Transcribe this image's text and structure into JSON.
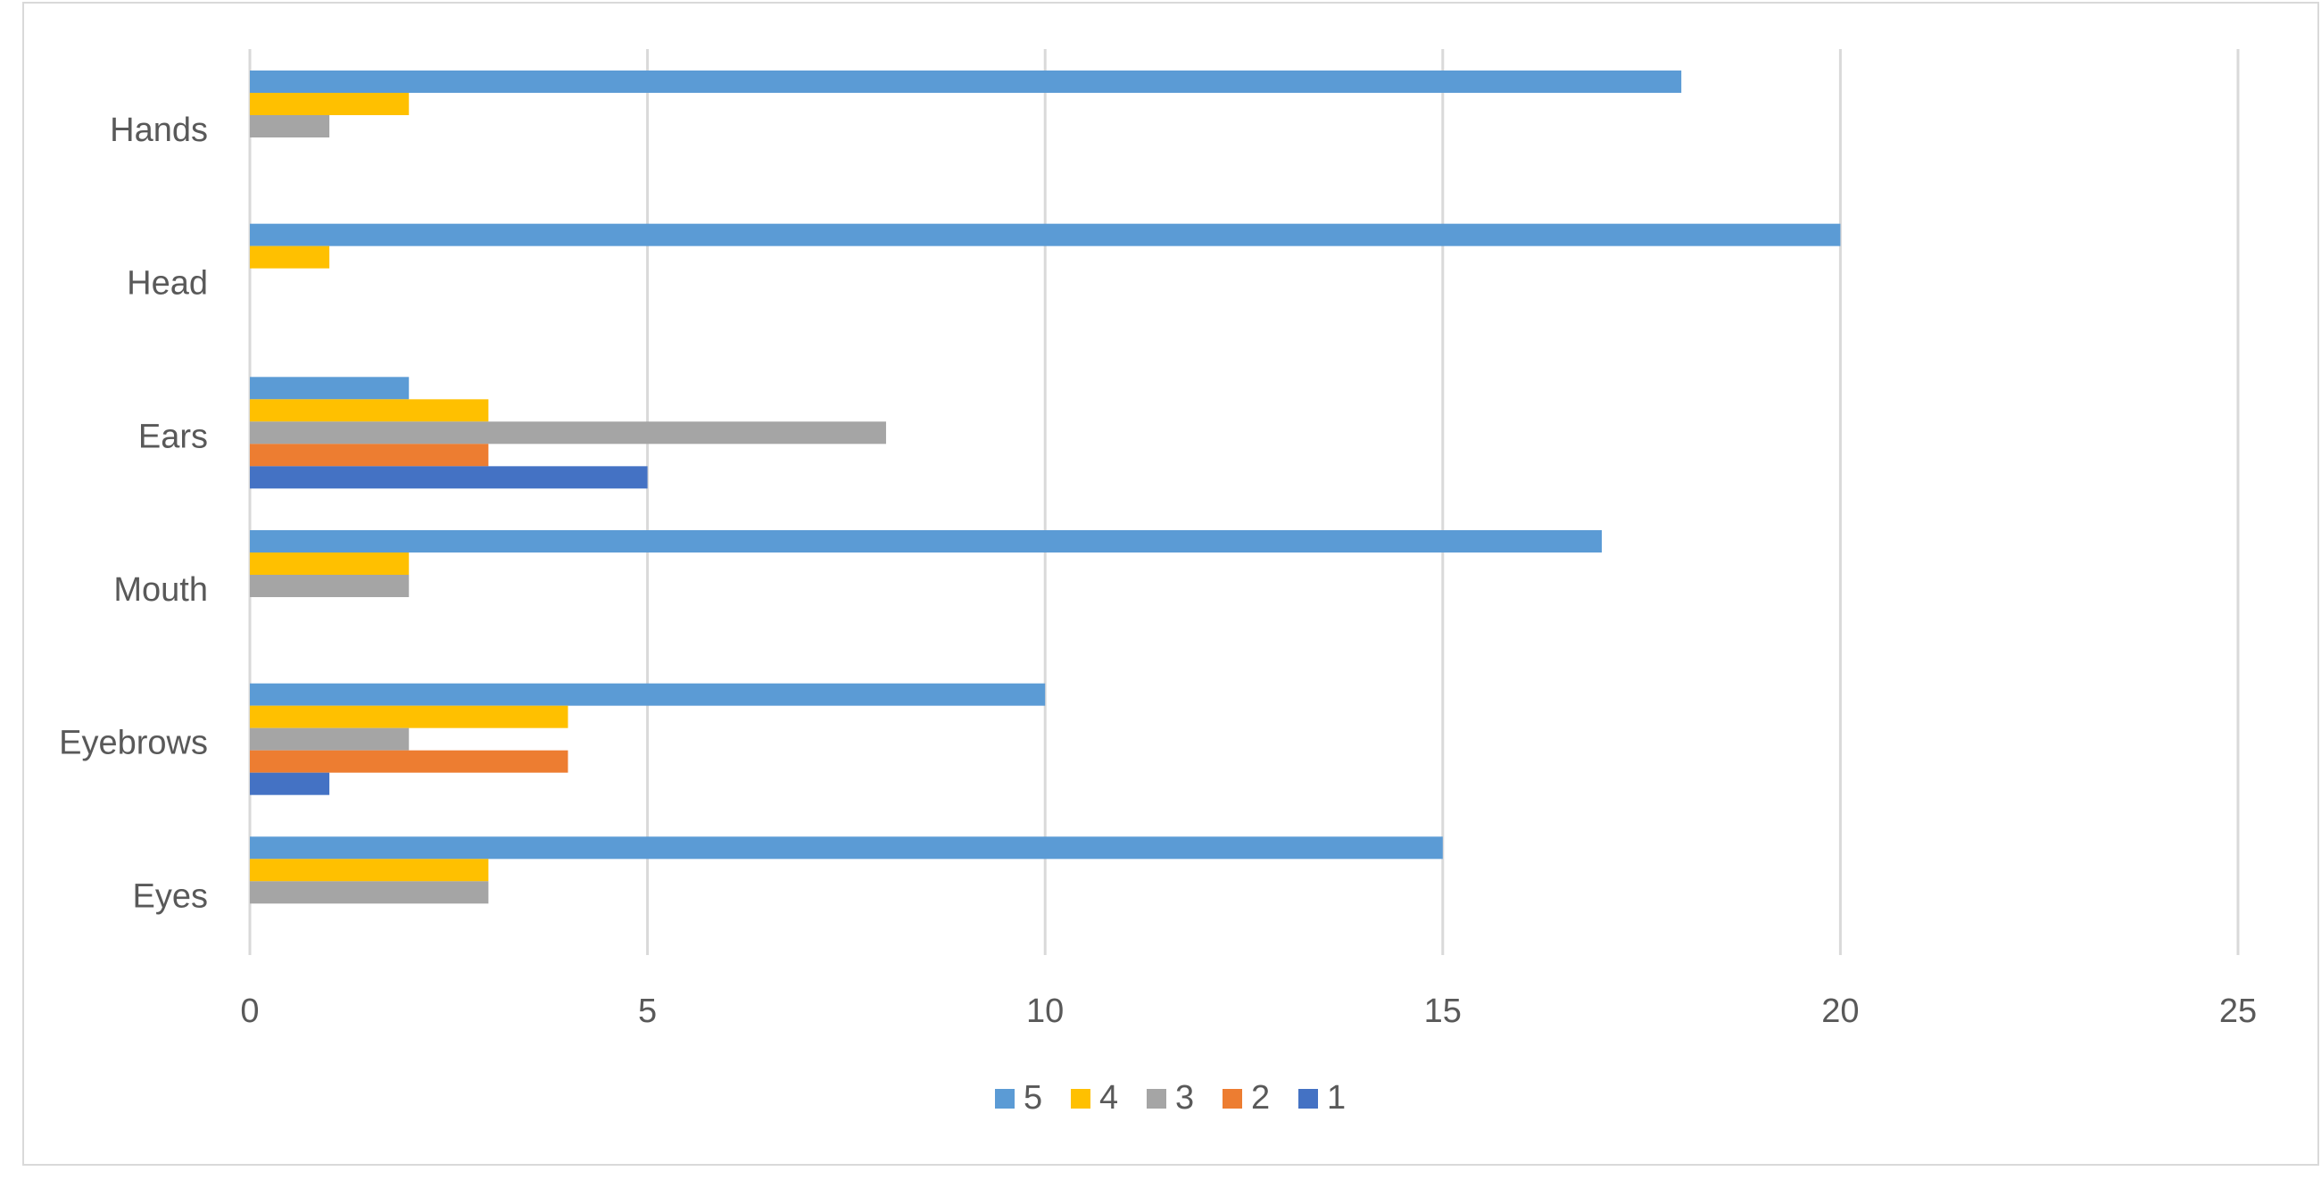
{
  "chart_data": {
    "type": "bar",
    "orientation": "horizontal",
    "categories": [
      "Eyes",
      "Eyebrows",
      "Mouth",
      "Ears",
      "Head",
      "Hands"
    ],
    "series": [
      {
        "name": "5",
        "color": "#5B9BD5",
        "values": [
          15,
          10,
          17,
          2,
          20,
          18
        ]
      },
      {
        "name": "4",
        "color": "#FFC000",
        "values": [
          3,
          4,
          2,
          3,
          1,
          2
        ]
      },
      {
        "name": "3",
        "color": "#A5A5A5",
        "values": [
          3,
          2,
          2,
          8,
          0,
          1
        ]
      },
      {
        "name": "2",
        "color": "#ED7D31",
        "values": [
          0,
          4,
          0,
          3,
          0,
          0
        ]
      },
      {
        "name": "1",
        "color": "#4472C4",
        "values": [
          0,
          1,
          0,
          5,
          0,
          0
        ]
      }
    ],
    "xlim": [
      0,
      25
    ],
    "xticks": [
      "0",
      "5",
      "10",
      "15",
      "20",
      "25"
    ],
    "title": "",
    "xlabel": "",
    "ylabel": "",
    "grid": "vertical",
    "legend_position": "bottom",
    "legend_order": [
      "5",
      "4",
      "3",
      "2",
      "1"
    ]
  }
}
